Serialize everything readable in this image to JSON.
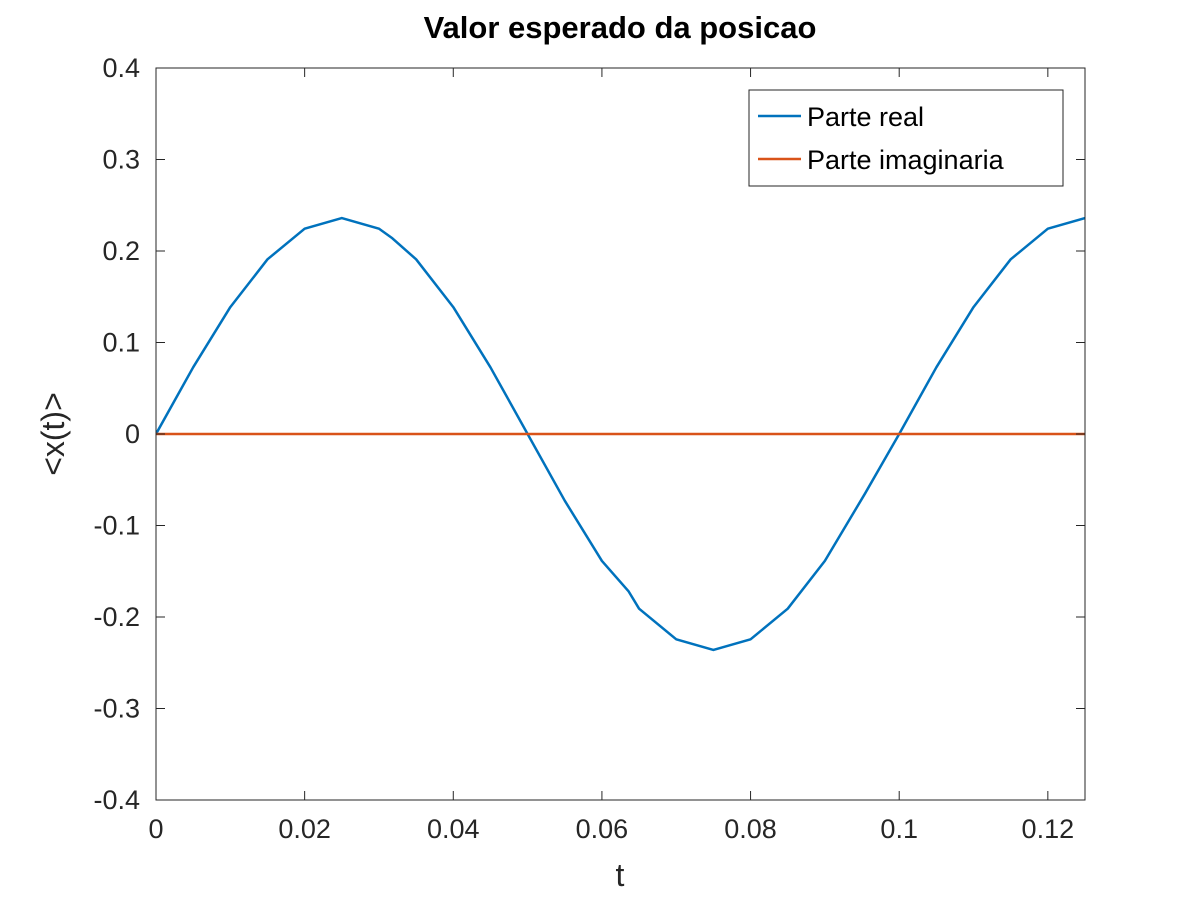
{
  "chart_data": {
    "type": "line",
    "title": "Valor esperado da posicao",
    "xlabel": "t",
    "ylabel": "<x(t)>",
    "xlim": [
      0,
      0.125
    ],
    "ylim": [
      -0.4,
      0.4
    ],
    "xticks": [
      0,
      0.02,
      0.04,
      0.06,
      0.08,
      0.1,
      0.12
    ],
    "xtick_labels": [
      "0",
      "0.02",
      "0.04",
      "0.06",
      "0.08",
      "0.1",
      "0.12"
    ],
    "yticks": [
      -0.4,
      -0.3,
      -0.2,
      -0.1,
      0,
      0.1,
      0.2,
      0.3,
      0.4
    ],
    "ytick_labels": [
      "-0.4",
      "-0.3",
      "-0.2",
      "-0.1",
      "0",
      "0.1",
      "0.2",
      "0.3",
      "0.4"
    ],
    "grid": false,
    "legend_position": "top-right",
    "series": [
      {
        "name": "Parte real",
        "color": "#0072BD",
        "x": [
          0,
          0.005,
          0.01,
          0.015,
          0.02,
          0.025,
          0.03,
          0.0318,
          0.035,
          0.04,
          0.045,
          0.05,
          0.055,
          0.06,
          0.0636,
          0.065,
          0.07,
          0.075,
          0.08,
          0.085,
          0.09,
          0.0954,
          0.1,
          0.105,
          0.11,
          0.115,
          0.12,
          0.125
        ],
        "y": [
          0,
          0.0729,
          0.1387,
          0.1909,
          0.2244,
          0.236,
          0.2244,
          0.2139,
          0.1909,
          0.1387,
          0.0729,
          0,
          -0.0729,
          -0.1387,
          -0.1721,
          -0.1909,
          -0.2244,
          -0.236,
          -0.2244,
          -0.1909,
          -0.1387,
          -0.0651,
          0,
          0.0729,
          0.1387,
          0.1909,
          0.2244,
          0.236
        ]
      },
      {
        "name": "Parte imaginaria",
        "color": "#D95319",
        "x": [
          0,
          0.125
        ],
        "y": [
          0,
          0
        ]
      }
    ]
  }
}
